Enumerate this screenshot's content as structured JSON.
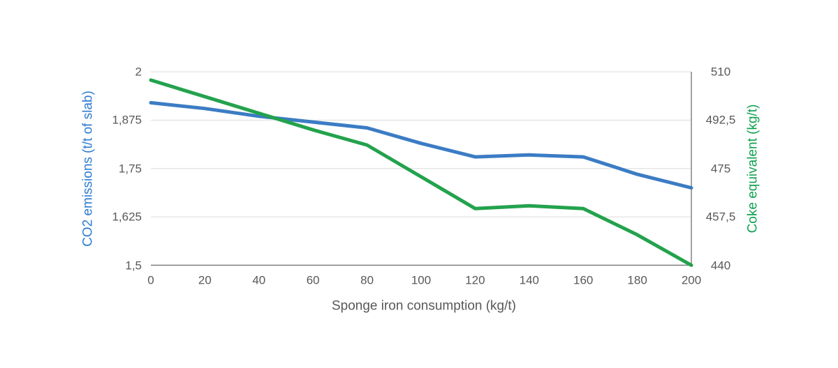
{
  "chart_data": {
    "type": "line",
    "title": "",
    "xlabel": "Sponge iron consumption (kg/t)",
    "ylabel_left": "CO2 emissions (t/t of slab)",
    "ylabel_right": "Coke equivalent (kg/t)",
    "x": [
      0,
      20,
      40,
      60,
      80,
      100,
      120,
      140,
      160,
      180,
      200
    ],
    "x_range": [
      0,
      200
    ],
    "y_left_range": [
      1.5,
      2.0
    ],
    "y_right_range": [
      440,
      510
    ],
    "x_tick_labels": [
      "0",
      "20",
      "40",
      "60",
      "80",
      "100",
      "120",
      "140",
      "160",
      "180",
      "200"
    ],
    "left_tick_labels": [
      "2",
      "1,875",
      "1,75",
      "1,625",
      "1,5"
    ],
    "right_tick_labels": [
      "510",
      "492,5",
      "475",
      "457,5",
      "440"
    ],
    "grid": true,
    "legend": "none",
    "series": [
      {
        "name": "CO2 emissions",
        "axis": "left",
        "color": "#3b7cc4",
        "values": [
          1.92,
          1.905,
          1.885,
          1.87,
          1.855,
          1.815,
          1.78,
          1.785,
          1.78,
          1.735,
          1.7
        ]
      },
      {
        "name": "Coke equivalent",
        "axis": "right",
        "color": "#23a24d",
        "values": [
          507,
          501,
          495,
          489,
          483.5,
          472,
          460.5,
          461.5,
          460.5,
          451,
          440
        ]
      }
    ]
  },
  "colors": {
    "left_axis_title": "#2e7cd1",
    "right_axis_title": "#0fa24e",
    "tick_text": "#58585a",
    "gridline": "#dbdbdb",
    "axis_line": "#7a7a7a",
    "background": "#ffffff"
  }
}
